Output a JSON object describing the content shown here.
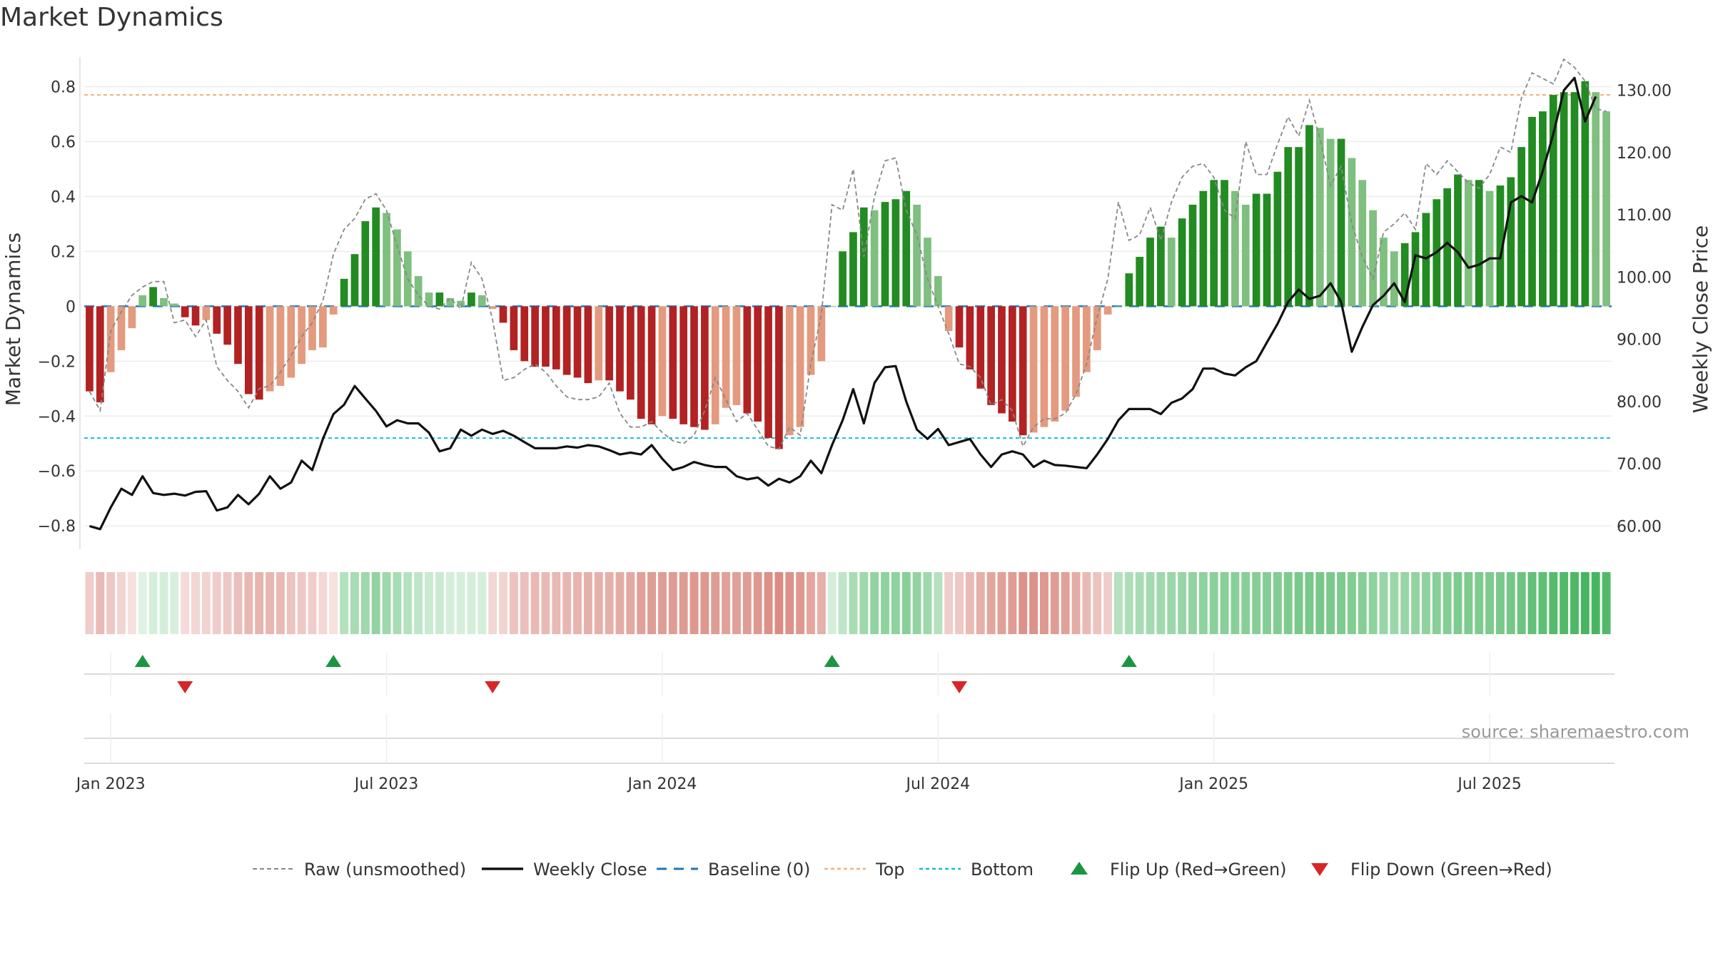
{
  "chart_data": {
    "type": "bar",
    "title": "Market Dynamics",
    "ylabel_left": "Market Dynamics",
    "ylabel_right": "Weekly Close Price",
    "ylim_left": [
      -0.88,
      0.9
    ],
    "ylim_right": [
      56.5,
      135.0
    ],
    "left_ticks": [
      {
        "v": 0.8,
        "label": "0.8"
      },
      {
        "v": 0.6,
        "label": "0.6"
      },
      {
        "v": 0.4,
        "label": "0.4"
      },
      {
        "v": 0.2,
        "label": "0.2"
      },
      {
        "v": 0,
        "label": "0"
      },
      {
        "v": -0.2,
        "label": "−0.2"
      },
      {
        "v": -0.4,
        "label": "−0.4"
      },
      {
        "v": -0.6,
        "label": "−0.6"
      },
      {
        "v": -0.8,
        "label": "−0.8"
      }
    ],
    "right_ticks": [
      {
        "v": 130,
        "label": "130.00"
      },
      {
        "v": 120,
        "label": "120.00"
      },
      {
        "v": 110,
        "label": "110.00"
      },
      {
        "v": 100,
        "label": "100.00"
      },
      {
        "v": 90,
        "label": "90.00"
      },
      {
        "v": 80,
        "label": "80.00"
      },
      {
        "v": 70,
        "label": "70.00"
      },
      {
        "v": 60,
        "label": "60.00"
      }
    ],
    "x_ticks": [
      {
        "week": 2.5,
        "label": "Jan 2023"
      },
      {
        "week": 28.5,
        "label": "Jul 2023"
      },
      {
        "week": 54.5,
        "label": "Jan 2024"
      },
      {
        "week": 80.5,
        "label": "Jul 2024"
      },
      {
        "week": 106.5,
        "label": "Jan 2025"
      },
      {
        "week": 132.5,
        "label": "Jul 2025"
      }
    ],
    "top_line": 0.77,
    "bottom_line": -0.48,
    "baseline": 0,
    "colors": {
      "strong_red": "#b22222",
      "light_red": "#e39a7e",
      "strong_green": "#228b22",
      "light_green": "#7fbf7f",
      "close": "#111111",
      "raw": "#888888",
      "baseline": "#1f77b4",
      "top": "#f0b27a",
      "bottom": "#17becf",
      "flip_up": "#1a9641",
      "flip_down": "#d62728",
      "strip_red": "#c0392b",
      "strip_green": "#27a844"
    },
    "smoothed": [
      -0.31,
      -0.35,
      -0.24,
      -0.16,
      -0.08,
      0.04,
      0.07,
      0.03,
      0.01,
      -0.04,
      -0.07,
      -0.05,
      -0.1,
      -0.14,
      -0.21,
      -0.32,
      -0.34,
      -0.31,
      -0.29,
      -0.26,
      -0.21,
      -0.16,
      -0.15,
      -0.03,
      0.1,
      0.19,
      0.31,
      0.36,
      0.34,
      0.28,
      0.2,
      0.11,
      0.05,
      0.05,
      0.03,
      0.02,
      0.05,
      0.04,
      -0.01,
      -0.06,
      -0.16,
      -0.2,
      -0.22,
      -0.22,
      -0.23,
      -0.25,
      -0.26,
      -0.28,
      -0.27,
      -0.27,
      -0.31,
      -0.34,
      -0.41,
      -0.43,
      -0.4,
      -0.41,
      -0.43,
      -0.44,
      -0.45,
      -0.43,
      -0.37,
      -0.36,
      -0.39,
      -0.42,
      -0.48,
      -0.52,
      -0.47,
      -0.44,
      -0.25,
      -0.2,
      0.0,
      0.2,
      0.27,
      0.36,
      0.35,
      0.38,
      0.39,
      0.42,
      0.37,
      0.25,
      0.11,
      -0.09,
      -0.15,
      -0.23,
      -0.3,
      -0.36,
      -0.39,
      -0.42,
      -0.47,
      -0.46,
      -0.44,
      -0.42,
      -0.38,
      -0.33,
      -0.24,
      -0.16,
      -0.03,
      0.0,
      0.12,
      0.18,
      0.25,
      0.29,
      0.25,
      0.32,
      0.37,
      0.42,
      0.46,
      0.46,
      0.42,
      0.37,
      0.41,
      0.41,
      0.49,
      0.58,
      0.58,
      0.66,
      0.65,
      0.61,
      0.61,
      0.54,
      0.46,
      0.35,
      0.25,
      0.2,
      0.23,
      0.27,
      0.34,
      0.39,
      0.43,
      0.48,
      0.46,
      0.46,
      0.42,
      0.44,
      0.47,
      0.58,
      0.69,
      0.71,
      0.77,
      0.78,
      0.78,
      0.82,
      0.78,
      0.71
    ],
    "raw": [
      -0.31,
      -0.38,
      -0.09,
      -0.02,
      0.04,
      0.07,
      0.09,
      0.09,
      -0.06,
      -0.05,
      -0.11,
      -0.05,
      -0.22,
      -0.27,
      -0.31,
      -0.37,
      -0.3,
      -0.29,
      -0.24,
      -0.18,
      -0.11,
      -0.06,
      0.02,
      0.19,
      0.28,
      0.32,
      0.39,
      0.41,
      0.35,
      0.22,
      0.1,
      0.04,
      0.0,
      -0.01,
      0.03,
      -0.01,
      0.16,
      0.1,
      -0.05,
      -0.27,
      -0.26,
      -0.23,
      -0.21,
      -0.24,
      -0.29,
      -0.33,
      -0.34,
      -0.34,
      -0.33,
      -0.28,
      -0.39,
      -0.44,
      -0.44,
      -0.42,
      -0.46,
      -0.49,
      -0.5,
      -0.47,
      -0.38,
      -0.26,
      -0.34,
      -0.42,
      -0.39,
      -0.45,
      -0.51,
      -0.52,
      -0.44,
      -0.47,
      -0.21,
      -0.03,
      0.37,
      0.35,
      0.5,
      0.18,
      0.4,
      0.53,
      0.54,
      0.35,
      0.26,
      0.1,
      0.0,
      -0.1,
      -0.21,
      -0.22,
      -0.26,
      -0.36,
      -0.34,
      -0.38,
      -0.51,
      -0.44,
      -0.41,
      -0.41,
      -0.39,
      -0.32,
      -0.21,
      -0.04,
      0.1,
      0.38,
      0.24,
      0.26,
      0.36,
      0.24,
      0.38,
      0.47,
      0.51,
      0.52,
      0.47,
      0.35,
      0.32,
      0.6,
      0.48,
      0.48,
      0.59,
      0.69,
      0.62,
      0.75,
      0.61,
      0.44,
      0.51,
      0.3,
      0.18,
      0.1,
      0.27,
      0.3,
      0.34,
      0.28,
      0.52,
      0.48,
      0.53,
      0.49,
      0.45,
      0.43,
      0.48,
      0.58,
      0.56,
      0.76,
      0.85,
      0.83,
      0.81,
      0.9,
      0.87,
      0.82,
      0.72,
      0.71
    ],
    "close": [
      60.0,
      59.5,
      63.0,
      66.0,
      65.0,
      68.0,
      65.3,
      65.0,
      65.2,
      64.9,
      65.5,
      65.6,
      62.5,
      63.0,
      65.0,
      63.5,
      65.2,
      68.0,
      66.0,
      67.0,
      70.5,
      69.0,
      74.0,
      78.0,
      79.5,
      82.5,
      80.5,
      78.5,
      76.0,
      77.0,
      76.5,
      76.5,
      75.0,
      72.0,
      72.5,
      75.5,
      74.5,
      75.5,
      74.8,
      75.3,
      74.5,
      73.5,
      72.5,
      72.5,
      72.5,
      72.8,
      72.6,
      73.0,
      72.8,
      72.2,
      71.5,
      71.8,
      71.5,
      73.0,
      70.8,
      69.0,
      69.5,
      70.3,
      69.8,
      69.5,
      69.5,
      68.0,
      67.5,
      67.8,
      66.5,
      67.6,
      67.0,
      68.0,
      70.5,
      68.5,
      73.0,
      77.0,
      82.0,
      76.5,
      83.0,
      85.5,
      85.7,
      80.0,
      75.5,
      74.0,
      75.6,
      73.0,
      73.5,
      74.0,
      71.5,
      69.5,
      71.5,
      72.0,
      71.5,
      69.5,
      70.5,
      69.8,
      69.7,
      69.5,
      69.3,
      71.5,
      74.0,
      77.0,
      78.8,
      78.8,
      78.8,
      78.0,
      79.8,
      80.5,
      82.0,
      85.3,
      85.3,
      84.5,
      84.2,
      85.5,
      86.5,
      89.5,
      92.5,
      96.0,
      98.0,
      96.5,
      97.0,
      99.0,
      96.0,
      88.0,
      92.0,
      95.5,
      97.0,
      99.0,
      96.0,
      103.5,
      103.0,
      104.0,
      105.5,
      104.0,
      101.5,
      102.0,
      103.0,
      103.0,
      112.0,
      113.0,
      112.0,
      117.0,
      123.0,
      130.0,
      132.0,
      125.0,
      129.0
    ],
    "strip_strength": [
      0.25,
      0.35,
      0.28,
      0.22,
      0.15,
      0.15,
      0.2,
      0.2,
      0.18,
      0.18,
      0.2,
      0.22,
      0.25,
      0.28,
      0.32,
      0.36,
      0.38,
      0.37,
      0.35,
      0.3,
      0.28,
      0.25,
      0.2,
      0.15,
      0.35,
      0.4,
      0.45,
      0.5,
      0.45,
      0.4,
      0.35,
      0.3,
      0.25,
      0.25,
      0.2,
      0.2,
      0.2,
      0.2,
      0.2,
      0.22,
      0.3,
      0.32,
      0.35,
      0.35,
      0.36,
      0.37,
      0.38,
      0.4,
      0.4,
      0.4,
      0.42,
      0.44,
      0.48,
      0.5,
      0.5,
      0.5,
      0.5,
      0.52,
      0.52,
      0.5,
      0.48,
      0.48,
      0.5,
      0.52,
      0.56,
      0.58,
      0.55,
      0.52,
      0.45,
      0.4,
      0.2,
      0.3,
      0.4,
      0.45,
      0.5,
      0.52,
      0.52,
      0.55,
      0.5,
      0.45,
      0.35,
      0.25,
      0.28,
      0.35,
      0.4,
      0.45,
      0.48,
      0.5,
      0.55,
      0.55,
      0.52,
      0.5,
      0.48,
      0.42,
      0.35,
      0.3,
      0.25,
      0.35,
      0.38,
      0.4,
      0.42,
      0.44,
      0.46,
      0.48,
      0.5,
      0.52,
      0.54,
      0.55,
      0.55,
      0.55,
      0.56,
      0.57,
      0.58,
      0.6,
      0.62,
      0.63,
      0.63,
      0.62,
      0.6,
      0.58,
      0.56,
      0.52,
      0.48,
      0.46,
      0.48,
      0.5,
      0.52,
      0.55,
      0.57,
      0.6,
      0.6,
      0.6,
      0.6,
      0.62,
      0.64,
      0.68,
      0.72,
      0.74,
      0.78,
      0.8,
      0.82,
      0.85,
      0.85,
      0.8
    ],
    "flips": [
      {
        "week": 5,
        "dir": "up"
      },
      {
        "week": 9,
        "dir": "down"
      },
      {
        "week": 23,
        "dir": "up"
      },
      {
        "week": 38,
        "dir": "down"
      },
      {
        "week": 70,
        "dir": "up"
      },
      {
        "week": 82,
        "dir": "down"
      },
      {
        "week": 98,
        "dir": "up"
      }
    ],
    "legend": [
      {
        "key": "raw",
        "label": "Raw (unsmoothed)"
      },
      {
        "key": "close",
        "label": "Weekly Close"
      },
      {
        "key": "baseline",
        "label": "Baseline (0)"
      },
      {
        "key": "top",
        "label": "Top"
      },
      {
        "key": "bottom",
        "label": "Bottom"
      },
      {
        "key": "flip_up",
        "label": "Flip Up (Red→Green)"
      },
      {
        "key": "flip_down",
        "label": "Flip Down (Green→Red)"
      }
    ],
    "source": "source: sharemaestro.com"
  }
}
